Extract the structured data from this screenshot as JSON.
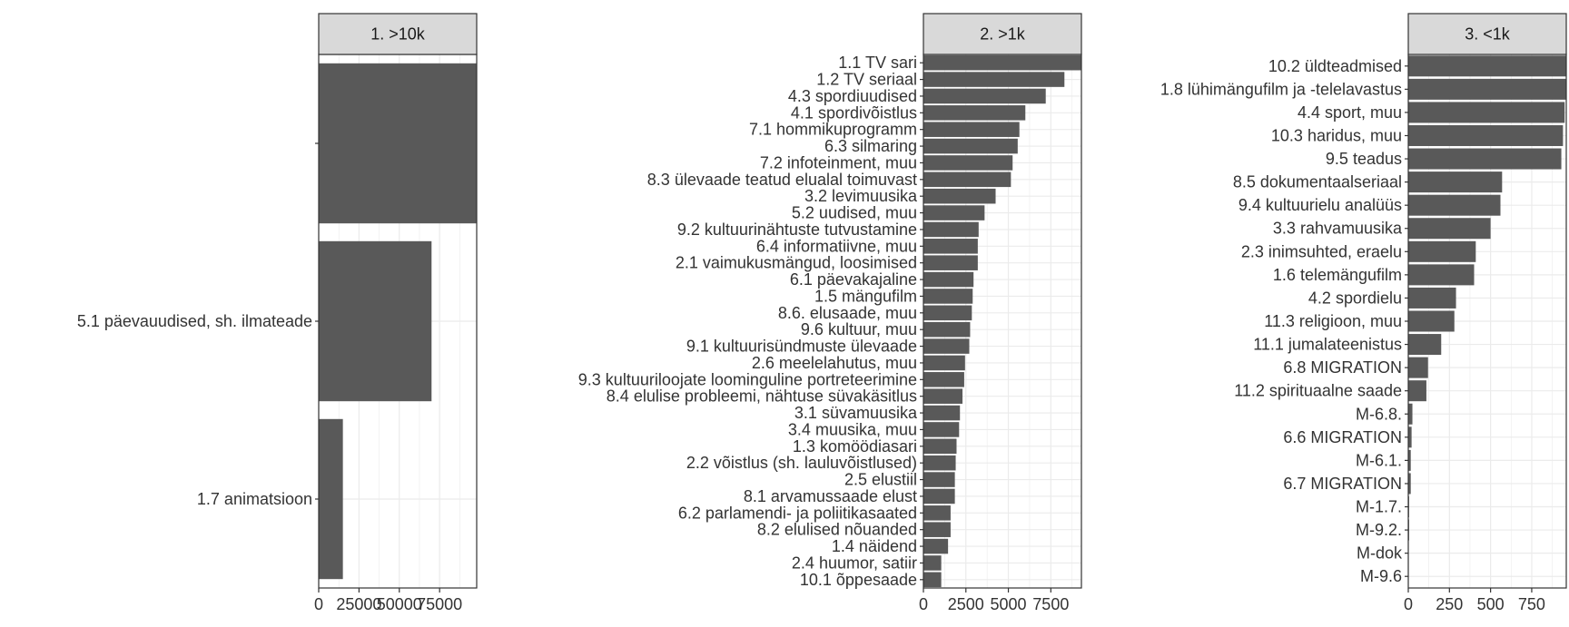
{
  "chart_data": [
    {
      "type": "bar",
      "orientation": "horizontal",
      "title": "1. >10k",
      "categories": [
        "",
        "5.1 päevauudised, sh. ilmateade",
        "1.7 animatsioon"
      ],
      "values": [
        98000,
        70000,
        15000
      ],
      "xlim": [
        0,
        98000
      ],
      "xticks": [
        0,
        25000,
        50000,
        75000
      ],
      "xtick_labels": [
        "0",
        "25000",
        "50000",
        "75000"
      ],
      "colors": {
        "bar": "#595959",
        "strip": "#d9d9d9",
        "grid": "#ebebeb"
      }
    },
    {
      "type": "bar",
      "orientation": "horizontal",
      "title": "2. >1k",
      "categories": [
        "1.1 TV sari",
        "1.2 TV seriaal",
        "4.3 spordiuudised",
        "4.1 spordivõistlus",
        "7.1 hommikuprogramm",
        "6.3 silmaring",
        "7.2 infoteinment, muu",
        "8.3 ülevaade teatud elualal toimuvast",
        "3.2 levimuusika",
        "5.2 uudised, muu",
        "9.2 kultuurinähtuste tutvustamine",
        "6.4 informatiivne, muu",
        "2.1 vaimukusmängud, loosimised",
        "6.1 päevakajaline",
        "1.5 mängufilm",
        "8.6. elusaade, muu",
        "9.6 kultuur, muu",
        "9.1 kultuurisündmuste ülevaade",
        "2.6 meelelahutus, muu",
        "9.3 kultuuriloojate loominguline portreteerimine",
        "8.4 elulise probleemi, nähtuse süvakäsitlus",
        "3.1 süvamuusika",
        "3.4 muusika, muu",
        "1.3 komöödiasari",
        "2.2 võistlus (sh. lauluvõistlused)",
        "2.5 elustiil",
        "8.1 arvamussaade elust",
        "6.2 parlamendi- ja poliitikasaated",
        "8.2 elulised nõuanded",
        "1.4 näidend",
        "2.4 huumor, satiir",
        "10.1 õppesaade"
      ],
      "values": [
        9300,
        8300,
        7200,
        6000,
        5650,
        5550,
        5250,
        5150,
        4250,
        3600,
        3250,
        3200,
        3200,
        2950,
        2900,
        2850,
        2750,
        2700,
        2450,
        2400,
        2300,
        2150,
        2100,
        1950,
        1900,
        1850,
        1850,
        1600,
        1600,
        1450,
        1050,
        1050
      ],
      "xlim": [
        0,
        9300
      ],
      "xticks": [
        0,
        2500,
        5000,
        7500
      ],
      "xtick_labels": [
        "0",
        "2500",
        "5000",
        "7500"
      ],
      "colors": {
        "bar": "#595959",
        "strip": "#d9d9d9",
        "grid": "#ebebeb"
      }
    },
    {
      "type": "bar",
      "orientation": "horizontal",
      "title": "3. <1k",
      "categories": [
        "10.2 üldteadmised",
        "1.8 lühimängufilm ja -telelavastus",
        "4.4 sport, muu",
        "10.3 haridus, muu",
        "9.5 teadus",
        "8.5 dokumentaalseriaal",
        "9.4 kultuurielu analüüs",
        "3.3 rahvamuusika",
        "2.3 inimsuhted, eraelu",
        "1.6 telemängufilm",
        "4.2 spordielu",
        "11.3 religioon, muu",
        "11.1 jumalateenistus",
        "6.8 MIGRATION",
        "11.2 spirituaalne saade",
        "M-6.8.",
        "6.6 MIGRATION",
        "M-6.1.",
        "6.7 MIGRATION",
        "M-1.7.",
        "M-9.2.",
        "M-dok",
        "M-9.6"
      ],
      "values": [
        960,
        960,
        950,
        940,
        930,
        570,
        560,
        500,
        410,
        400,
        290,
        280,
        200,
        120,
        110,
        25,
        20,
        15,
        15,
        5,
        5,
        2,
        2
      ],
      "xlim": [
        0,
        960
      ],
      "xticks": [
        0,
        250,
        500,
        750
      ],
      "xtick_labels": [
        "0",
        "250",
        "500",
        "750"
      ],
      "colors": {
        "bar": "#595959",
        "strip": "#d9d9d9",
        "grid": "#ebebeb"
      }
    }
  ]
}
